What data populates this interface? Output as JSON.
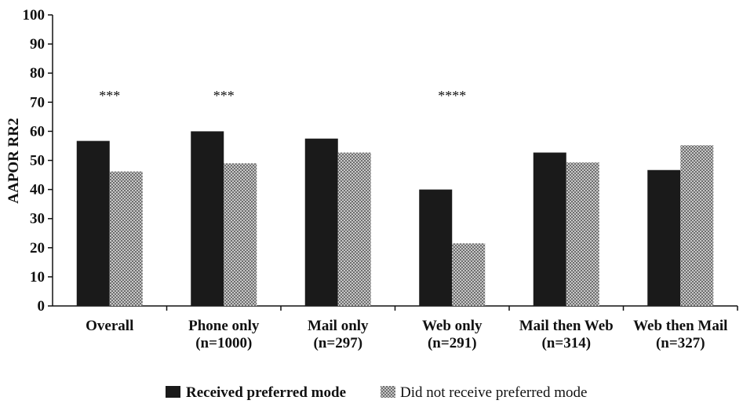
{
  "chart_data": {
    "type": "bar",
    "title": "",
    "xlabel": "",
    "ylabel": "AAPOR RR2",
    "ylim": [
      0,
      100
    ],
    "yticks": [
      0,
      10,
      20,
      30,
      40,
      50,
      60,
      70,
      80,
      90,
      100
    ],
    "grid": false,
    "legend_position": "bottom",
    "categories": [
      [
        "Overall"
      ],
      [
        "Phone only",
        "(n=1000)"
      ],
      [
        "Mail only",
        "(n=297)"
      ],
      [
        "Web only",
        "(n=291)"
      ],
      [
        "Mail then Web",
        "(n=314)"
      ],
      [
        "Web then Mail",
        "(n=327)"
      ]
    ],
    "series": [
      {
        "name": "Received preferred mode",
        "color": "#1a1a1a",
        "pattern": "solid",
        "values": [
          56.7,
          60.0,
          57.5,
          40.0,
          52.7,
          46.7
        ]
      },
      {
        "name": "Did not receive preferred mode",
        "color": "#9a9a9a",
        "pattern": "checkered",
        "values": [
          46.2,
          49.0,
          52.7,
          21.5,
          49.3,
          55.2
        ]
      }
    ],
    "annotations": [
      {
        "category_index": 0,
        "text": "***"
      },
      {
        "category_index": 1,
        "text": "***"
      },
      {
        "category_index": 3,
        "text": "****"
      }
    ]
  }
}
